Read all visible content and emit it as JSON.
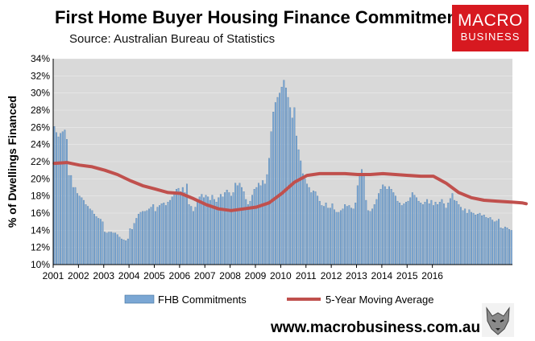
{
  "header": {
    "title": "First Home Buyer Housing Finance Commitments",
    "subtitle": "Source: Australian Bureau of Statistics",
    "logo_line1": "MACRO",
    "logo_line2": "BUSINESS"
  },
  "footer": {
    "website": "www.macrobusiness.com.au"
  },
  "colors": {
    "bar": "#7ba7d4",
    "bar_edge": "#3f6e9c",
    "line": "#c0504d",
    "plot_bg": "#d9d9d9",
    "logo_bg": "#d71920"
  },
  "chart_data": {
    "type": "bar",
    "ylabel": "% of Dwellings Financed",
    "ylim": [
      10,
      34
    ],
    "yticks": [
      "10%",
      "12%",
      "14%",
      "16%",
      "18%",
      "20%",
      "22%",
      "24%",
      "26%",
      "28%",
      "30%",
      "32%",
      "34%"
    ],
    "xticks": [
      "2001",
      "2002",
      "2003",
      "2004",
      "2005",
      "2006",
      "2007",
      "2008",
      "2009",
      "2010",
      "2011",
      "2012",
      "2013",
      "2014",
      "2015",
      "2016"
    ],
    "x_start": "2001-01",
    "frequency": "monthly",
    "legend_position": "bottom",
    "series": [
      {
        "name": "FHB Commitments",
        "kind": "bar",
        "values": [
          26.1,
          25.4,
          24.9,
          25.3,
          25.5,
          25.7,
          24.6,
          20.4,
          20.4,
          19.0,
          19.0,
          18.3,
          18.0,
          17.8,
          17.5,
          17.0,
          16.8,
          16.5,
          16.3,
          15.9,
          15.6,
          15.4,
          15.3,
          15.0,
          13.8,
          13.7,
          13.8,
          13.8,
          13.7,
          13.7,
          13.5,
          13.2,
          13.0,
          12.9,
          12.8,
          13.0,
          14.2,
          14.1,
          14.8,
          15.4,
          15.9,
          16.1,
          16.2,
          16.2,
          16.3,
          16.5,
          16.7,
          17.0,
          16.2,
          16.7,
          16.9,
          17.1,
          17.2,
          16.9,
          17.3,
          17.5,
          17.9,
          18.5,
          18.8,
          18.9,
          18.5,
          19.0,
          18.4,
          19.4,
          17.0,
          16.8,
          16.2,
          16.7,
          17.5,
          17.9,
          18.2,
          17.8,
          18.1,
          17.9,
          17.5,
          18.1,
          17.6,
          17.3,
          17.8,
          18.2,
          17.9,
          18.4,
          18.7,
          18.4,
          18.0,
          18.4,
          19.5,
          19.2,
          19.5,
          19.0,
          18.5,
          17.6,
          17.0,
          17.4,
          18.1,
          18.8,
          19.0,
          19.5,
          19.2,
          19.8,
          19.4,
          20.5,
          22.4,
          25.5,
          27.8,
          28.9,
          29.5,
          30.0,
          30.7,
          31.5,
          30.6,
          29.5,
          28.3,
          27.1,
          28.3,
          25.0,
          23.4,
          22.1,
          20.6,
          20.0,
          19.4,
          19.0,
          18.4,
          18.6,
          18.5,
          18.0,
          17.4,
          16.9,
          16.8,
          17.2,
          16.6,
          16.6,
          17.1,
          16.4,
          16.1,
          16.1,
          16.3,
          16.5,
          17.0,
          16.8,
          16.9,
          16.6,
          16.5,
          17.2,
          19.2,
          20.4,
          21.1,
          20.4,
          17.5,
          16.3,
          16.2,
          16.5,
          17.0,
          17.6,
          18.3,
          18.8,
          19.3,
          19.1,
          18.8,
          19.1,
          18.8,
          18.4,
          18.0,
          17.4,
          17.2,
          16.9,
          17.1,
          17.3,
          17.4,
          17.8,
          18.4,
          18.1,
          17.8,
          17.4,
          17.2,
          17.0,
          17.3,
          17.6,
          17.1,
          17.5,
          16.9,
          17.3,
          17.0,
          17.3,
          17.6,
          17.1,
          16.6,
          17.2,
          17.7,
          18.3,
          17.5,
          17.4,
          17.0,
          16.7,
          16.3,
          16.5,
          16.0,
          16.4,
          16.1,
          16.0,
          15.8,
          15.9,
          16.0,
          15.7,
          15.8,
          15.5,
          15.4,
          15.5,
          15.2,
          15.0,
          15.1,
          15.3,
          14.3,
          14.2,
          14.4,
          14.3,
          14.1,
          14.0
        ]
      },
      {
        "name": "5-Year Moving Average",
        "kind": "line",
        "x_index": [
          0,
          6,
          12,
          18,
          24,
          30,
          36,
          42,
          48,
          54,
          60,
          66,
          72,
          78,
          84,
          90,
          96,
          102,
          108,
          114,
          120,
          126,
          132,
          138,
          144,
          150,
          156,
          162,
          168,
          174,
          180,
          186,
          192,
          198,
          204,
          210,
          216,
          222,
          224
        ],
        "values": [
          21.8,
          21.9,
          21.6,
          21.4,
          21.0,
          20.5,
          19.8,
          19.2,
          18.8,
          18.4,
          18.3,
          17.7,
          17.0,
          16.5,
          16.3,
          16.5,
          16.7,
          17.2,
          18.3,
          19.6,
          20.4,
          20.6,
          20.6,
          20.6,
          20.5,
          20.5,
          20.6,
          20.5,
          20.4,
          20.3,
          20.3,
          19.5,
          18.4,
          17.8,
          17.5,
          17.4,
          17.3,
          17.2,
          17.1
        ]
      }
    ]
  }
}
